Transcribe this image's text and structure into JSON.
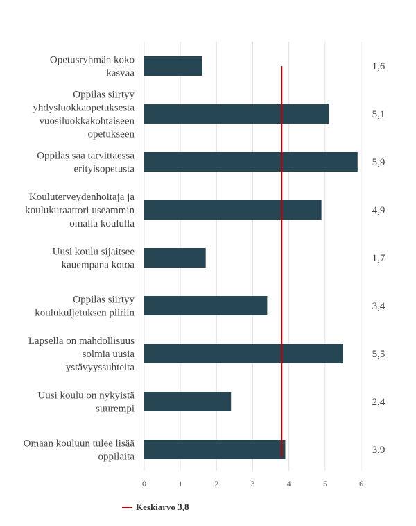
{
  "chart_data": {
    "type": "bar",
    "orientation": "horizontal",
    "categories": [
      "Opetusryhmän koko kasvaa",
      "Oppilas siirtyy yhdysluokkaopetuksesta vuosiluokkakohtaiseen opetukseen",
      "Oppilas saa tarvittaessa erityisopetusta",
      "Kouluterveydenhoitaja ja koulukuraattori useammin omalla koululla",
      "Uusi koulu sijaitsee kauempana kotoa",
      "Oppilas siirtyy koulukuljetuksen piiriin",
      "Lapsella on mahdollisuus solmia uusia ystävyyssuhteita",
      "Uusi koulu on nykyistä suurempi",
      "Omaan kouluun tulee lisää oppilaita"
    ],
    "category_lines": [
      [
        "Opetusryhmän koko",
        "kasvaa"
      ],
      [
        "Oppilas siirtyy",
        "yhdysluokkaopetuksesta",
        "vuosiluokkakohtaiseen",
        "opetukseen"
      ],
      [
        "Oppilas saa tarvittaessa",
        "erityisopetusta"
      ],
      [
        "Kouluterveydenhoitaja ja",
        "koulukuraattori useammin",
        "omalla koululla"
      ],
      [
        "Uusi koulu sijaitsee",
        "kauempana kotoa"
      ],
      [
        "Oppilas siirtyy",
        "koulukuljetuksen piiriin"
      ],
      [
        "Lapsella on mahdollisuus",
        "solmia uusia",
        "ystävyyssuhteita"
      ],
      [
        "Uusi koulu on nykyistä",
        "suurempi"
      ],
      [
        "Omaan kouluun tulee lisää",
        "oppilaita"
      ]
    ],
    "values": [
      1.6,
      5.1,
      5.9,
      4.9,
      1.7,
      3.4,
      5.5,
      2.4,
      3.9
    ],
    "value_labels": [
      "1,6",
      "5,1",
      "5,9",
      "4,9",
      "1,7",
      "3,4",
      "5,5",
      "2,4",
      "3,9"
    ],
    "xlim": [
      0,
      6
    ],
    "xticks": [
      0,
      1,
      2,
      3,
      4,
      5,
      6
    ],
    "bar_color": "#264653",
    "grid": true,
    "reference_line": {
      "value": 3.8,
      "label": "Keskiarvo 3,8",
      "color": "#c00000"
    },
    "legend_position": "bottom-left"
  }
}
